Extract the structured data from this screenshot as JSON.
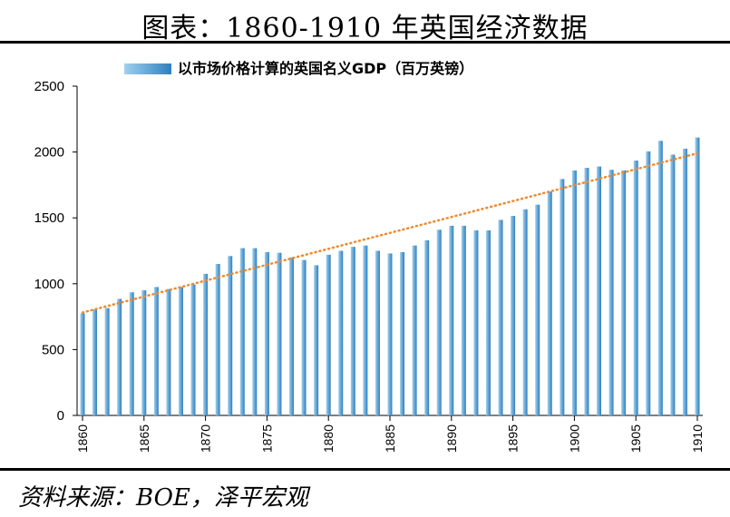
{
  "page": {
    "title": "图表：1860-1910 年英国经济数据",
    "source": "资料来源：BOE，泽平宏观"
  },
  "colors": {
    "bar_light": "#9fd0ee",
    "bar_dark": "#2f7fbf",
    "trend": "#f08a2c",
    "axis": "#000000"
  },
  "chart_data": {
    "type": "bar",
    "legend": "以市场价格计算的英国名义GDP（百万英镑）",
    "legend_position": "top",
    "grid": false,
    "trendline": "linear",
    "ylim": [
      0,
      2500
    ],
    "yticks": [
      0,
      500,
      1000,
      1500,
      2000,
      2500
    ],
    "xticks": [
      1860,
      1865,
      1870,
      1875,
      1880,
      1885,
      1890,
      1895,
      1900,
      1905,
      1910
    ],
    "series": [
      {
        "name": "以市场价格计算的英国名义GDP（百万英镑）",
        "x": [
          1860,
          1861,
          1862,
          1863,
          1864,
          1865,
          1866,
          1867,
          1868,
          1869,
          1870,
          1871,
          1872,
          1873,
          1874,
          1875,
          1876,
          1877,
          1878,
          1879,
          1880,
          1881,
          1882,
          1883,
          1884,
          1885,
          1886,
          1887,
          1888,
          1889,
          1890,
          1891,
          1892,
          1893,
          1894,
          1895,
          1896,
          1897,
          1898,
          1899,
          1900,
          1901,
          1902,
          1903,
          1904,
          1905,
          1906,
          1907,
          1908,
          1909,
          1910
        ],
        "values": [
          775,
          805,
          815,
          885,
          935,
          950,
          975,
          960,
          975,
          995,
          1075,
          1150,
          1210,
          1270,
          1270,
          1240,
          1235,
          1200,
          1180,
          1140,
          1220,
          1250,
          1280,
          1290,
          1250,
          1230,
          1240,
          1290,
          1330,
          1410,
          1440,
          1440,
          1405,
          1405,
          1485,
          1515,
          1565,
          1600,
          1700,
          1795,
          1860,
          1880,
          1890,
          1865,
          1860,
          1935,
          2005,
          2085,
          1980,
          2025,
          2110
        ]
      }
    ]
  }
}
